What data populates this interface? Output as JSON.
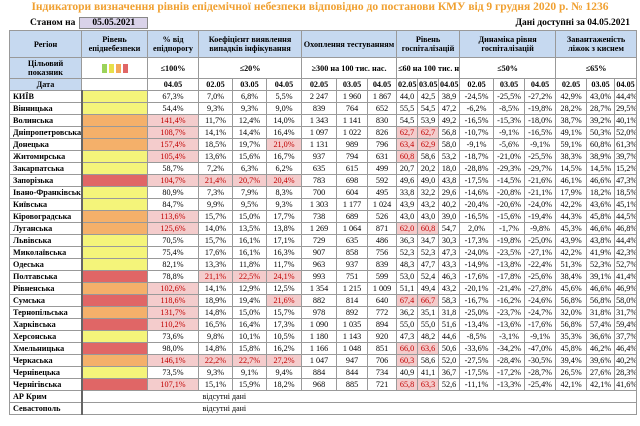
{
  "title": "Індикатори визначення рівнів епідемічної небезпеки відповідно до постанови КМУ від 9 грудня 2020 р. № 1236",
  "as_of_label": "Станом на",
  "as_of_date": "05.05.2021",
  "available": "Дані доступні за 04.05.2021",
  "colors": {
    "yellow": "#f4f47a",
    "orange": "#f4b06a",
    "red": "#e06666",
    "highlight": "#f4cccc",
    "highlight_text": "#c00000",
    "header": "#c6d9f0",
    "title": "#f0a030"
  },
  "headers": {
    "region": "Регіон",
    "level": "Рівень епіднебезпеки",
    "pct": "% від епідпорогу",
    "coef": "Коефіцієнт виявлення випадків інфікування",
    "testing": "Охоплення тестуванням",
    "hosp": "Рівень госпіталізацій",
    "dyn": "Динаміка рівня госпіталізацій",
    "oxygen": "Завантаженість ліжок з киснем"
  },
  "targets": {
    "label": "Цільовий показник",
    "pct": "≤100%",
    "coef": "≤20%",
    "testing": "≥300 на 100 тис. нас.",
    "hosp": "≤60 на 100 тис. нас.",
    "dyn": "≤50%",
    "oxygen": "≤65%"
  },
  "date_label": "Дата",
  "pct_date": "04.05",
  "dates": [
    "02.05",
    "03.05",
    "04.05"
  ],
  "rows": [
    [
      "КИЇВ",
      "yellow",
      "67,3%",
      "7,0%",
      "6,8%",
      "5,5%",
      "2 247",
      "1 960",
      "1 867",
      "44,0",
      "42,5",
      "38,9",
      "-24,5%",
      "-25,5%",
      "-27,2%",
      "42,9%",
      "43,0%",
      "44,4%"
    ],
    [
      "Вінницька",
      "yellow",
      "54,4%",
      "9,3%",
      "9,3%",
      "9,0%",
      "839",
      "764",
      "652",
      "55,5",
      "54,5",
      "47,2",
      "-6,2%",
      "-8,5%",
      "-19,8%",
      "28,2%",
      "28,7%",
      "29,5%"
    ],
    [
      "Волинська",
      "orange",
      "141,4%",
      "11,7%",
      "12,4%",
      "14,0%",
      "1 343",
      "1 141",
      "830",
      "54,5",
      "53,9",
      "49,2",
      "-16,5%",
      "-15,3%",
      "-18,0%",
      "38,7%",
      "39,2%",
      "40,1%"
    ],
    [
      "Дніпропетровська",
      "orange",
      "108,7%",
      "14,1%",
      "14,4%",
      "16,4%",
      "1 097",
      "1 022",
      "826",
      "62,7",
      "62,7",
      "56,8",
      "-10,7%",
      "-9,1%",
      "-16,5%",
      "49,1%",
      "50,3%",
      "52,0%"
    ],
    [
      "Донецька",
      "orange",
      "157,4%",
      "18,5%",
      "19,7%",
      "21,0%",
      "1 131",
      "989",
      "796",
      "63,4",
      "62,9",
      "58,0",
      "-9,1%",
      "-5,6%",
      "-9,1%",
      "59,1%",
      "60,8%",
      "61,3%"
    ],
    [
      "Житомирська",
      "yellow",
      "105,4%",
      "13,6%",
      "15,6%",
      "16,7%",
      "937",
      "794",
      "631",
      "60,8",
      "58,6",
      "53,2",
      "-18,7%",
      "-21,0%",
      "-25,5%",
      "38,3%",
      "38,9%",
      "39,7%"
    ],
    [
      "Закарпатська",
      "yellow",
      "58,7%",
      "7,2%",
      "6,3%",
      "6,2%",
      "635",
      "615",
      "499",
      "20,7",
      "20,2",
      "18,0",
      "-28,8%",
      "-29,3%",
      "-29,7%",
      "14,5%",
      "14,5%",
      "15,2%"
    ],
    [
      "Запорізька",
      "red",
      "104,7%",
      "21,4%",
      "20,7%",
      "20,4%",
      "783",
      "698",
      "592",
      "49,6",
      "49,0",
      "43,8",
      "-17,5%",
      "-14,5%",
      "-21,6%",
      "46,1%",
      "46,6%",
      "47,3%"
    ],
    [
      "Івано-Франківська",
      "yellow",
      "80,9%",
      "7,3%",
      "7,9%",
      "8,3%",
      "700",
      "604",
      "495",
      "33,8",
      "32,2",
      "29,6",
      "-14,6%",
      "-20,8%",
      "-21,1%",
      "17,9%",
      "18,2%",
      "18,5%"
    ],
    [
      "Київська",
      "yellow",
      "84,7%",
      "9,9%",
      "9,5%",
      "9,3%",
      "1 303",
      "1 177",
      "1 024",
      "43,9",
      "43,2",
      "40,2",
      "-20,4%",
      "-20,6%",
      "-24,0%",
      "42,2%",
      "43,6%",
      "45,1%"
    ],
    [
      "Кіровоградська",
      "orange",
      "113,6%",
      "15,7%",
      "15,0%",
      "17,7%",
      "738",
      "689",
      "526",
      "43,0",
      "43,0",
      "39,0",
      "-16,5%",
      "-15,6%",
      "-19,4%",
      "44,3%",
      "45,8%",
      "44,5%"
    ],
    [
      "Луганська",
      "orange",
      "125,6%",
      "14,0%",
      "13,5%",
      "13,8%",
      "1 269",
      "1 064",
      "871",
      "62,0",
      "60,8",
      "54,7",
      "2,0%",
      "-1,7%",
      "-9,8%",
      "45,3%",
      "46,6%",
      "46,8%"
    ],
    [
      "Львівська",
      "yellow",
      "70,5%",
      "15,7%",
      "16,1%",
      "17,1%",
      "729",
      "635",
      "486",
      "36,3",
      "34,7",
      "30,3",
      "-17,3%",
      "-19,8%",
      "-25,0%",
      "43,9%",
      "43,8%",
      "44,4%"
    ],
    [
      "Миколаївська",
      "yellow",
      "75,4%",
      "17,6%",
      "16,1%",
      "16,3%",
      "907",
      "858",
      "756",
      "52,3",
      "52,3",
      "47,3",
      "-24,0%",
      "-23,5%",
      "-27,1%",
      "42,2%",
      "41,9%",
      "42,3%"
    ],
    [
      "Одеська",
      "yellow",
      "82,1%",
      "13,3%",
      "11,8%",
      "11,7%",
      "963",
      "937",
      "839",
      "48,3",
      "47,7",
      "43,3",
      "-14,9%",
      "-13,8%",
      "-22,4%",
      "51,3%",
      "52,3%",
      "52,7%"
    ],
    [
      "Полтавська",
      "red",
      "78,8%",
      "21,1%",
      "22,5%",
      "24,1%",
      "993",
      "751",
      "599",
      "53,0",
      "52,4",
      "46,3",
      "-17,6%",
      "-17,8%",
      "-25,6%",
      "38,4%",
      "39,1%",
      "41,4%"
    ],
    [
      "Рівненська",
      "orange",
      "102,6%",
      "14,1%",
      "12,9%",
      "12,5%",
      "1 354",
      "1 215",
      "1 009",
      "51,1",
      "49,4",
      "43,2",
      "-20,1%",
      "-21,4%",
      "-27,8%",
      "45,6%",
      "46,6%",
      "46,9%"
    ],
    [
      "Сумська",
      "red",
      "118,6%",
      "18,9%",
      "19,4%",
      "21,6%",
      "882",
      "814",
      "640",
      "67,4",
      "66,7",
      "58,3",
      "-16,7%",
      "-16,2%",
      "-24,6%",
      "56,8%",
      "56,8%",
      "58,0%"
    ],
    [
      "Тернопільська",
      "orange",
      "131,7%",
      "14,8%",
      "15,0%",
      "15,7%",
      "978",
      "892",
      "772",
      "36,2",
      "35,1",
      "31,8",
      "-25,0%",
      "-23,7%",
      "-24,7%",
      "32,0%",
      "31,8%",
      "31,7%"
    ],
    [
      "Харківська",
      "red",
      "110,2%",
      "16,5%",
      "16,4%",
      "17,3%",
      "1 090",
      "1 035",
      "894",
      "55,0",
      "55,0",
      "51,6",
      "-13,4%",
      "-13,6%",
      "-17,6%",
      "56,8%",
      "57,4%",
      "59,4%"
    ],
    [
      "Херсонська",
      "yellow",
      "73,6%",
      "9,8%",
      "10,1%",
      "10,5%",
      "1 180",
      "1 143",
      "920",
      "47,3",
      "48,2",
      "44,6",
      "-8,5%",
      "-3,1%",
      "-9,1%",
      "35,3%",
      "36,6%",
      "37,7%"
    ],
    [
      "Хмельницька",
      "red",
      "98,0%",
      "14,8%",
      "15,8%",
      "16,2%",
      "1 166",
      "1 048",
      "851",
      "66,0",
      "63,6",
      "50,6",
      "-33,6%",
      "-34,2%",
      "-47,0%",
      "45,8%",
      "46,2%",
      "46,4%"
    ],
    [
      "Черкаська",
      "orange",
      "146,1%",
      "22,2%",
      "22,7%",
      "27,2%",
      "1 047",
      "947",
      "706",
      "60,3",
      "58,6",
      "52,0",
      "-27,5%",
      "-28,4%",
      "-30,5%",
      "39,4%",
      "39,6%",
      "40,2%"
    ],
    [
      "Чернівецька",
      "yellow",
      "73,5%",
      "9,3%",
      "9,1%",
      "9,4%",
      "884",
      "844",
      "734",
      "40,9",
      "41,1",
      "36,7",
      "-17,5%",
      "-17,2%",
      "-28,7%",
      "26,5%",
      "27,6%",
      "28,3%"
    ],
    [
      "Чернігівська",
      "red",
      "107,1%",
      "15,1%",
      "15,9%",
      "18,2%",
      "968",
      "885",
      "721",
      "65,8",
      "63,3",
      "52,6",
      "-11,1%",
      "-13,3%",
      "-25,4%",
      "42,1%",
      "42,1%",
      "41,6%"
    ]
  ],
  "nodata_rows": [
    {
      "region": "АР Крим",
      "text": "відсутні дані"
    },
    {
      "region": "Севастополь",
      "text": "відсутні дані"
    }
  ]
}
